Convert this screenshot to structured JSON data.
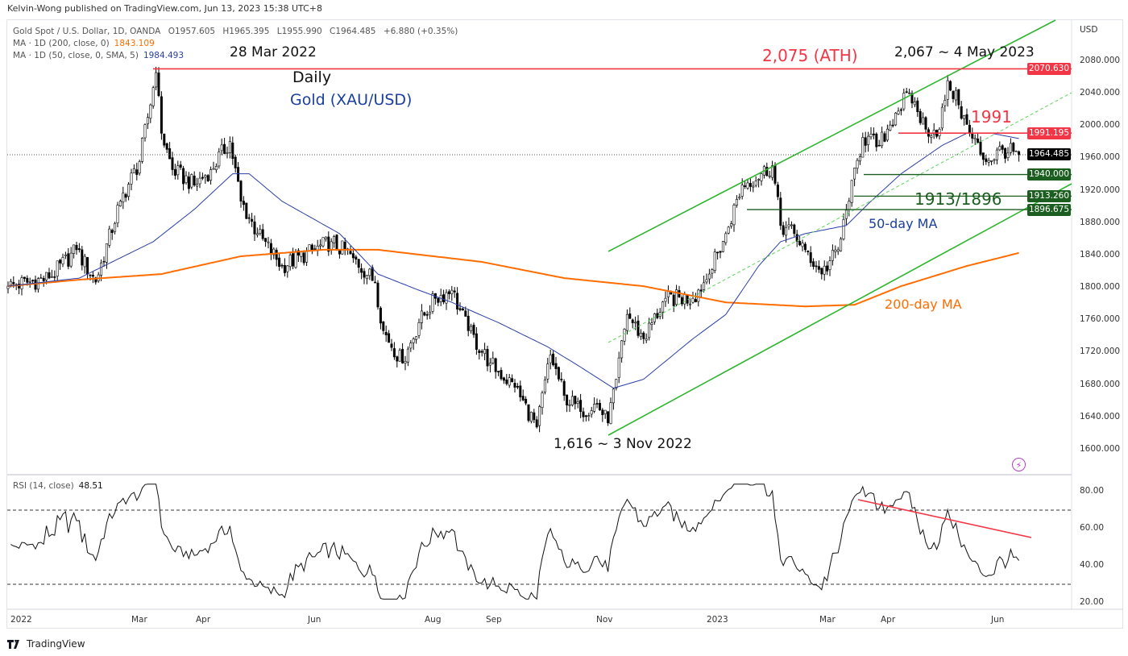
{
  "header": {
    "published": "Kelvin-Wong published on TradingView.com, Jun 13, 2023 15:38 UTC+8"
  },
  "legend": {
    "symbol": "Gold Spot / U.S. Dollar, 1D, OANDA",
    "open": "O1957.605",
    "high": "H1965.395",
    "low": "L1955.990",
    "close": "C1964.485",
    "change": "+6.880 (+0.35%)",
    "ma200_label": "MA · 1D (200, close, 0)",
    "ma200_value": "1843.109",
    "ma50_label": "MA · 1D (50, close, 0, SMA, 5)",
    "ma50_value": "1984.493",
    "rsi_label": "RSI (14, close)",
    "rsi_value": "48.51"
  },
  "annotations": {
    "ath_date": "28 Mar 2022",
    "daily": "Daily",
    "instrument": "Gold (XAU/USD)",
    "ath": "2,075 (ATH)",
    "may_high": "2,067 ~ 4 May 2023",
    "level_1991": "1991",
    "support": "1913/1896",
    "ma50": "50-day MA",
    "ma200": "200-day MA",
    "nov_low": "1,616 ~ 3 Nov 2022"
  },
  "price_axis": {
    "currency": "USD",
    "ticks": [
      "2080.000",
      "2040.000",
      "2000.000",
      "1960.000",
      "1920.000",
      "1880.000",
      "1840.000",
      "1800.000",
      "1760.000",
      "1720.000",
      "1680.000",
      "1640.000",
      "1600.000"
    ]
  },
  "price_tags": [
    {
      "value": "2070.630",
      "color": "#f23645"
    },
    {
      "value": "1991.195",
      "color": "#f23645"
    },
    {
      "value": "1964.485",
      "color": "#000000"
    },
    {
      "value": "1940.000",
      "color": "#1b5e20"
    },
    {
      "value": "1913.260",
      "color": "#1b5e20"
    },
    {
      "value": "1896.675",
      "color": "#1b5e20"
    }
  ],
  "rsi_axis": {
    "ticks": [
      "80.00",
      "60.00",
      "40.00",
      "20.00"
    ]
  },
  "time_axis": [
    "2022",
    "Mar",
    "Apr",
    "Jun",
    "Aug",
    "Sep",
    "Nov",
    "2023",
    "Mar",
    "Apr",
    "Jun"
  ],
  "logo": "TradingView",
  "chart_data": {
    "type": "candlestick",
    "title": "Gold Spot / U.S. Dollar, 1D",
    "ylim": [
      1560,
      2110
    ],
    "rsi_ylim": [
      15,
      88
    ],
    "close_keypoints": [
      [
        0,
        1802
      ],
      [
        15,
        1812
      ],
      [
        25,
        1847
      ],
      [
        32,
        1807
      ],
      [
        41,
        1907
      ],
      [
        48,
        1956
      ],
      [
        54,
        2066
      ],
      [
        56,
        1991
      ],
      [
        60,
        1946
      ],
      [
        68,
        1927
      ],
      [
        74,
        1946
      ],
      [
        81,
        1981
      ],
      [
        85,
        1907
      ],
      [
        91,
        1867
      ],
      [
        100,
        1827
      ],
      [
        112,
        1847
      ],
      [
        118,
        1857
      ],
      [
        126,
        1837
      ],
      [
        134,
        1807
      ],
      [
        137,
        1747
      ],
      [
        144,
        1707
      ],
      [
        150,
        1757
      ],
      [
        156,
        1787
      ],
      [
        162,
        1797
      ],
      [
        168,
        1747
      ],
      [
        176,
        1707
      ],
      [
        185,
        1677
      ],
      [
        193,
        1628
      ],
      [
        198,
        1717
      ],
      [
        203,
        1667
      ],
      [
        209,
        1647
      ],
      [
        215,
        1657
      ],
      [
        219,
        1633
      ],
      [
        222,
        1687
      ],
      [
        226,
        1767
      ],
      [
        232,
        1737
      ],
      [
        240,
        1787
      ],
      [
        250,
        1787
      ],
      [
        256,
        1817
      ],
      [
        262,
        1867
      ],
      [
        268,
        1927
      ],
      [
        275,
        1941
      ],
      [
        279,
        1951
      ],
      [
        282,
        1877
      ],
      [
        287,
        1867
      ],
      [
        291,
        1847
      ],
      [
        297,
        1817
      ],
      [
        303,
        1847
      ],
      [
        307,
        1907
      ],
      [
        312,
        1986
      ],
      [
        318,
        1976
      ],
      [
        324,
        2016
      ],
      [
        329,
        2041
      ],
      [
        335,
        1996
      ],
      [
        340,
        1996
      ],
      [
        343,
        2056
      ],
      [
        347,
        2026
      ],
      [
        351,
        1991
      ],
      [
        357,
        1956
      ],
      [
        363,
        1971
      ],
      [
        369,
        1964.485
      ]
    ],
    "ma50_keypoints": [
      [
        0,
        1802
      ],
      [
        26,
        1812
      ],
      [
        53,
        1857
      ],
      [
        68,
        1897
      ],
      [
        82,
        1941
      ],
      [
        88,
        1941
      ],
      [
        100,
        1907
      ],
      [
        121,
        1867
      ],
      [
        135,
        1817
      ],
      [
        150,
        1797
      ],
      [
        162,
        1782
      ],
      [
        179,
        1757
      ],
      [
        197,
        1727
      ],
      [
        209,
        1702
      ],
      [
        221,
        1676
      ],
      [
        232,
        1687
      ],
      [
        250,
        1737
      ],
      [
        262,
        1767
      ],
      [
        274,
        1827
      ],
      [
        282,
        1857
      ],
      [
        291,
        1867
      ],
      [
        306,
        1877
      ],
      [
        315,
        1907
      ],
      [
        326,
        1941
      ],
      [
        341,
        1976
      ],
      [
        350,
        1991
      ],
      [
        359,
        1991
      ],
      [
        369,
        1984.5
      ]
    ],
    "ma200_keypoints": [
      [
        0,
        1802
      ],
      [
        26,
        1810
      ],
      [
        56,
        1817
      ],
      [
        85,
        1839
      ],
      [
        115,
        1847
      ],
      [
        135,
        1847
      ],
      [
        173,
        1832
      ],
      [
        203,
        1812
      ],
      [
        232,
        1802
      ],
      [
        262,
        1782
      ],
      [
        291,
        1777
      ],
      [
        309,
        1779
      ],
      [
        326,
        1802
      ],
      [
        350,
        1827
      ],
      [
        369,
        1843.1
      ]
    ],
    "horizontal_levels": [
      2070.63,
      1991.195,
      1964.485,
      1940.0,
      1913.26,
      1896.675
    ],
    "rsi_levels": [
      70,
      30
    ],
    "colors": {
      "up": "#ffffff",
      "down": "#000000",
      "ma50": "#2a3fa8",
      "ma200": "#ff6d00",
      "channel": "#2fb52f",
      "resistance": "#f23645",
      "support": "#1b5e20"
    }
  }
}
